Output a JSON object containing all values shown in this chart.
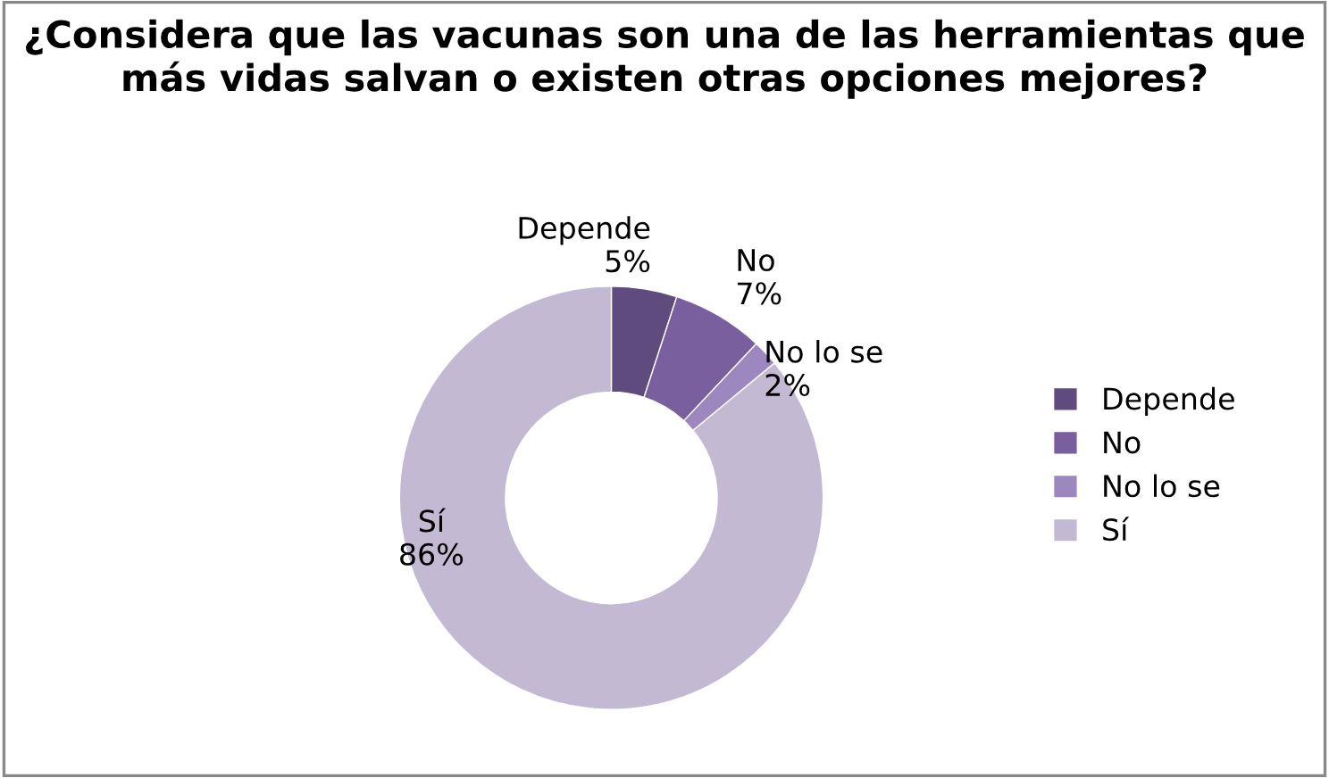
{
  "chart_data": {
    "type": "donut",
    "title": "¿Considera que las vacunas son una de las herramientas que más vidas salvan o existen otras opciones mejores?",
    "categories": [
      "Depende",
      "No",
      "No lo se",
      "Sí"
    ],
    "values": [
      5,
      7,
      2,
      86
    ],
    "colors": [
      "#5f4b7d",
      "#7a5f9e",
      "#9c88bf",
      "#c3b9d3"
    ],
    "value_labels": [
      "5%",
      "7%",
      "2%",
      "86%"
    ],
    "legend": "right"
  }
}
